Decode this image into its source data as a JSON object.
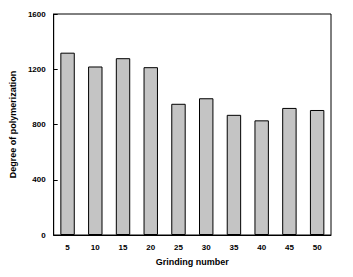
{
  "chart_data": {
    "type": "bar",
    "x_label": "Grinding number",
    "y_label": "Degree of polymerization",
    "categories": [
      "5",
      "10",
      "15",
      "20",
      "25",
      "30",
      "35",
      "40",
      "45",
      "50"
    ],
    "values": [
      1320,
      1220,
      1280,
      1215,
      950,
      990,
      870,
      830,
      920,
      905
    ],
    "color": "#c4c4c4",
    "ylim": [
      0,
      1600
    ],
    "yticks": [
      0,
      400,
      800,
      1200,
      1600
    ],
    "grid": false
  }
}
